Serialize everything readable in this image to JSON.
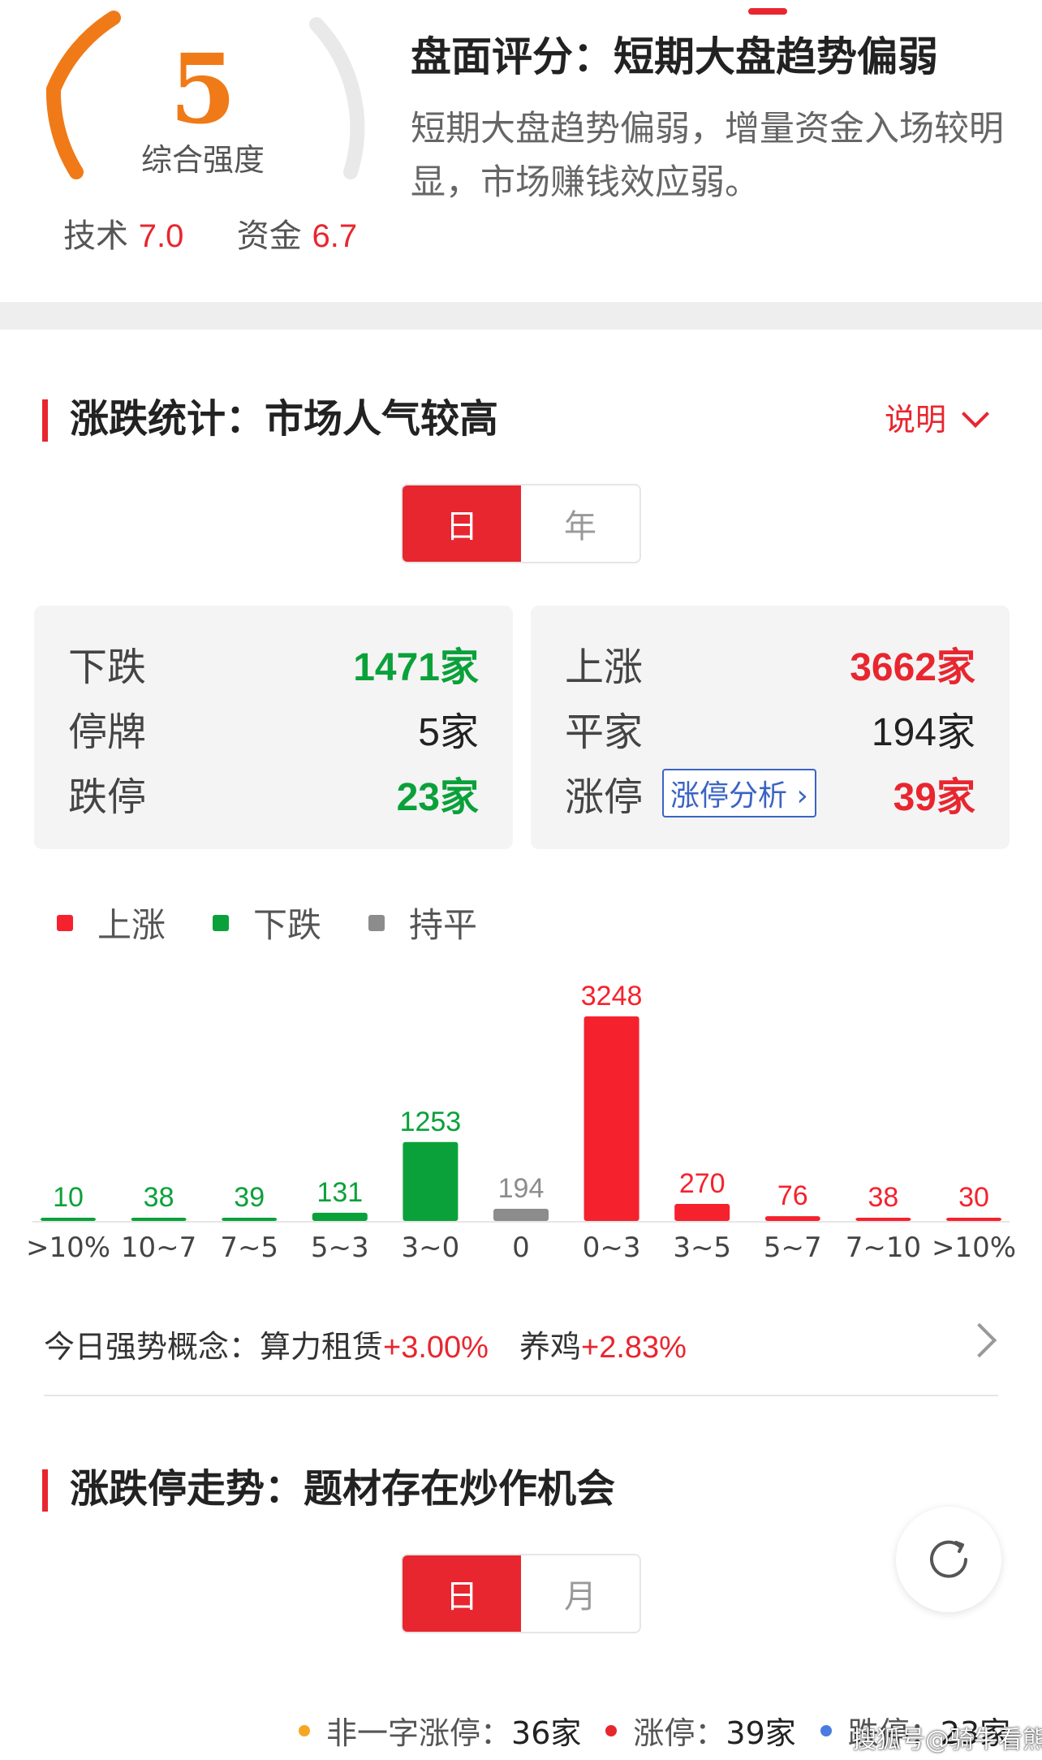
{
  "score": {
    "value": "5",
    "caption": "综合强度",
    "tech_label": "技术",
    "tech_value": "7.0",
    "fund_label": "资金",
    "fund_value": "6.7",
    "title": "盘面评分：短期大盘趋势偏弱",
    "description": "短期大盘趋势偏弱，增量资金入场较明显，市场赚钱效应弱。",
    "gauge_fraction": 0.5,
    "gauge_color": "#f07a17"
  },
  "stats_section": {
    "title": "涨跌统计：市场人气较高",
    "explain_label": "说明",
    "toggle": [
      "日",
      "年"
    ],
    "active_toggle": "日",
    "left_box": [
      {
        "label": "下跌",
        "value": "1471家",
        "color": "green"
      },
      {
        "label": "停牌",
        "value": "5家",
        "color": "black"
      },
      {
        "label": "跌停",
        "value": "23家",
        "color": "green"
      }
    ],
    "right_box": [
      {
        "label": "上涨",
        "value": "3662家",
        "color": "red"
      },
      {
        "label": "平家",
        "value": "194家",
        "color": "black"
      },
      {
        "label": "涨停",
        "value": "39家",
        "color": "red"
      }
    ],
    "limit_analysis_label": "涨停分析",
    "legend": [
      {
        "label": "上涨",
        "color": "#f5222d"
      },
      {
        "label": "下跌",
        "color": "#0aa13a"
      },
      {
        "label": "持平",
        "color": "#8c8c8c"
      }
    ]
  },
  "chart_data": {
    "type": "bar",
    "categories": [
      ">10%",
      "10~7",
      "7~5",
      "5~3",
      "3~0",
      "0",
      "0~3",
      "3~5",
      "5~7",
      "7~10",
      ">10%"
    ],
    "values": [
      10,
      38,
      39,
      131,
      1253,
      194,
      3248,
      270,
      76,
      38,
      30
    ],
    "bar_colors": [
      "#0aa13a",
      "#0aa13a",
      "#0aa13a",
      "#0aa13a",
      "#0aa13a",
      "#8c8c8c",
      "#f5222d",
      "#f5222d",
      "#f5222d",
      "#f5222d",
      "#f5222d"
    ],
    "series_names": [
      "上涨",
      "下跌",
      "持平"
    ],
    "ylim": [
      0,
      3248
    ],
    "grid": false
  },
  "concepts": {
    "label": "今日强势概念：",
    "items": [
      {
        "name": "算力租赁",
        "change": "+3.00%"
      },
      {
        "name": "养鸡",
        "change": "+2.83%"
      }
    ]
  },
  "trend_section": {
    "title": "涨跌停走势：题材存在炒作机会",
    "toggle": [
      "日",
      "月"
    ],
    "active_toggle": "日",
    "legend": [
      {
        "label": "非一字涨停：",
        "value": "36家",
        "color": "#f5a623"
      },
      {
        "label": "涨停：",
        "value": "39家",
        "color": "#e8262f"
      },
      {
        "label": "跌停：",
        "value": "23家",
        "color": "#4a7be0"
      }
    ]
  },
  "watermark": "搜狐号@骑牛看熊"
}
